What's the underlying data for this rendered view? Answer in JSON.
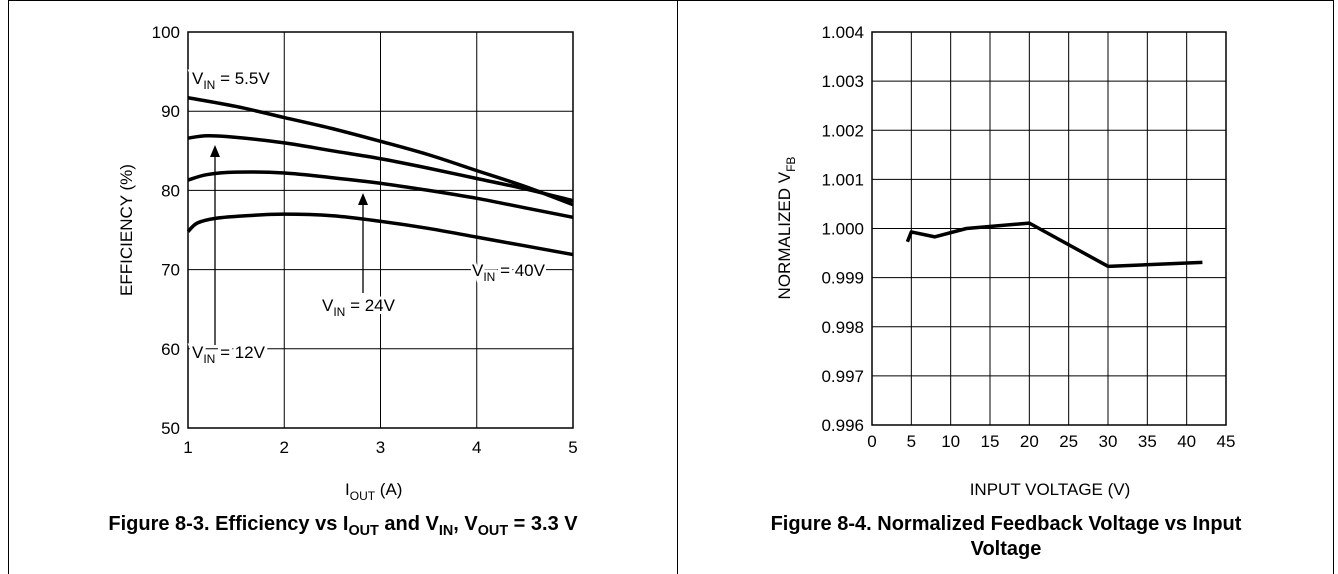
{
  "figures": [
    {
      "caption": {
        "prefix": "Figure 8-3. Efficiency vs I",
        "sub1": "OUT",
        "mid1": " and V",
        "sub2": "IN",
        "mid2": ", V",
        "sub3": "OUT",
        "suffix": " = 3.3 V"
      }
    },
    {
      "caption": {
        "line1": "Figure 8-4. Normalized Feedback Voltage vs Input",
        "line2": "Voltage"
      }
    }
  ],
  "chart_data": [
    {
      "type": "line",
      "xlabel": {
        "main": "I",
        "sub": "OUT",
        "rest": " (A)"
      },
      "ylabel": "EFFICIENCY (%)",
      "xlim": [
        1,
        5
      ],
      "ylim": [
        50,
        100
      ],
      "xticks": [
        1,
        2,
        3,
        4,
        5
      ],
      "yticks": [
        50,
        60,
        70,
        80,
        90,
        100
      ],
      "grid": true,
      "series": [
        {
          "name": {
            "main": "V",
            "sub": "IN",
            "rest": " = 5.5V"
          },
          "x": [
            1,
            1.5,
            2,
            2.5,
            3,
            3.5,
            4,
            4.5,
            5
          ],
          "y": [
            91.7,
            90.6,
            89.2,
            87.8,
            86.2,
            84.5,
            82.5,
            80.5,
            78.2
          ]
        },
        {
          "name": {
            "main": "V",
            "sub": "IN",
            "rest": " = 12V"
          },
          "x": [
            1,
            1.2,
            1.5,
            2,
            2.5,
            3,
            3.5,
            4,
            4.5,
            5
          ],
          "y": [
            86.6,
            86.9,
            86.7,
            86.0,
            85.0,
            84.0,
            82.8,
            81.5,
            80.2,
            78.7
          ]
        },
        {
          "name": {
            "main": "V",
            "sub": "IN",
            "rest": " = 24V"
          },
          "x": [
            1,
            1.2,
            1.5,
            2,
            2.5,
            3,
            3.5,
            4,
            4.5,
            5
          ],
          "y": [
            81.3,
            82.0,
            82.3,
            82.2,
            81.6,
            80.9,
            80.0,
            79.0,
            77.8,
            76.6
          ]
        },
        {
          "name": {
            "main": "V",
            "sub": "IN",
            "rest": " = 40V"
          },
          "x": [
            1,
            1.1,
            1.3,
            1.6,
            2,
            2.5,
            3,
            3.5,
            4,
            4.5,
            5
          ],
          "y": [
            74.8,
            75.9,
            76.5,
            76.8,
            77.0,
            76.8,
            76.1,
            75.2,
            74.1,
            73.0,
            71.9
          ]
        }
      ]
    },
    {
      "type": "line",
      "xlabel": "INPUT VOLTAGE (V)",
      "ylabel": {
        "main": "NORMALIZED V",
        "sub": "FB"
      },
      "xlim": [
        0,
        45
      ],
      "ylim": [
        0.996,
        1.004
      ],
      "xticks": [
        "0",
        "5",
        "10",
        "15",
        "20",
        "25",
        "30",
        "35",
        "40",
        "45"
      ],
      "yticks": [
        "0.996",
        "0.997",
        "0.998",
        "0.999",
        "1.000",
        "1.001",
        "1.002",
        "1.003",
        "1.004"
      ],
      "grid": true,
      "series": [
        {
          "x": [
            4.5,
            5,
            8,
            12,
            20,
            30,
            42
          ],
          "y": [
            0.99973,
            0.99993,
            0.99983,
            1.0,
            1.00011,
            0.99923,
            0.99931
          ]
        }
      ]
    }
  ]
}
